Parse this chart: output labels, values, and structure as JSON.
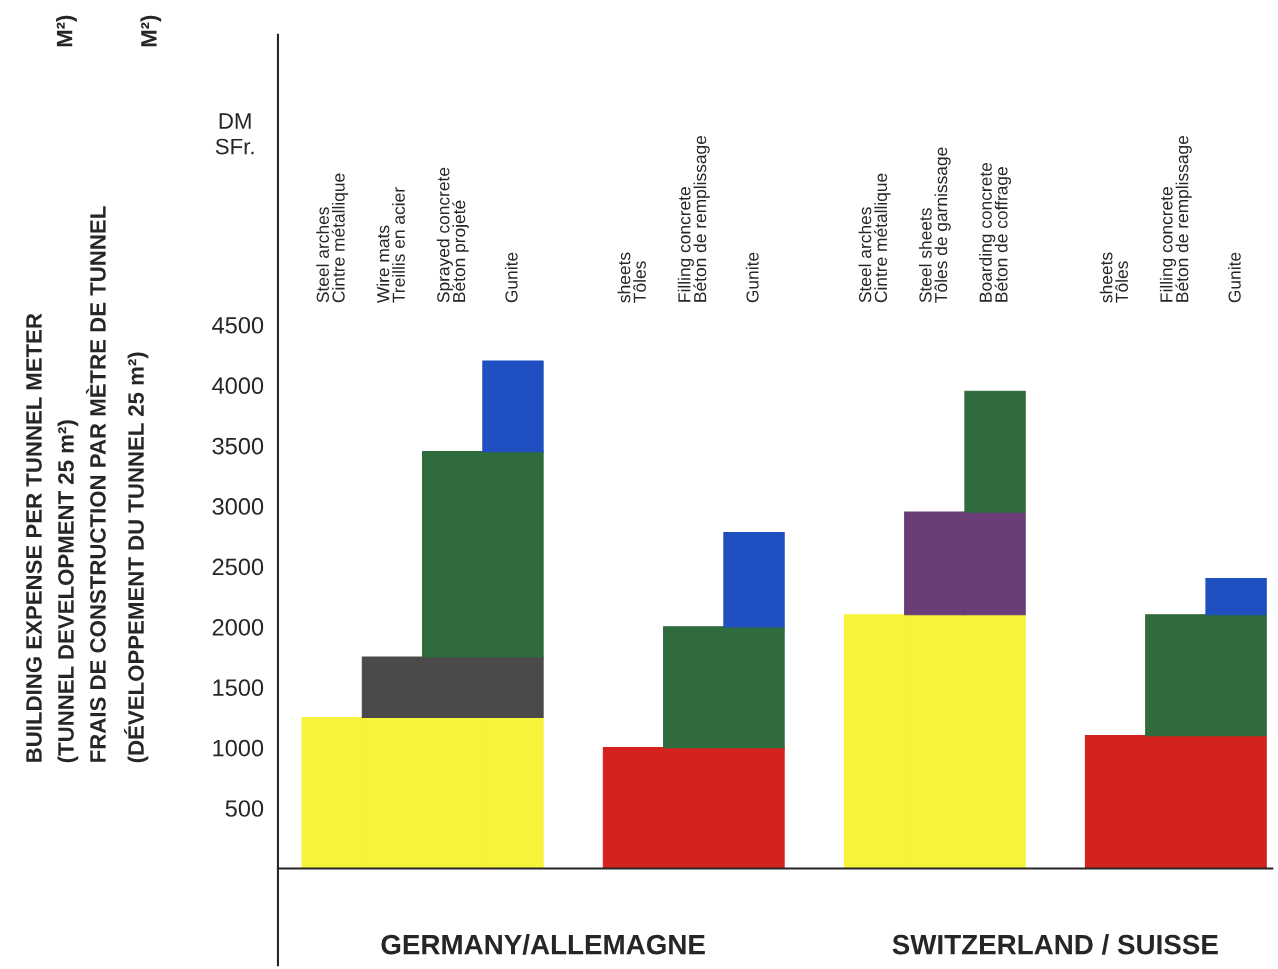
{
  "chart_data": {
    "type": "bar",
    "stacked": true,
    "ylabel": "BUILDING EXPENSE PER TUNNEL METER\n(TUNNEL DEVELOPMENT 25 m²)\nFRAIS DE CONSTRUCTION PAR MÈTRE DE TUNNEL\n(DÉVELOPPEMENT DU TUNNEL 25 m²)",
    "categories": [
      "Steel arches\nCintre métallique",
      "Wire mats\nTreillis en acier",
      "Sprayed concrete\nBéton projeté",
      "Gunite",
      null,
      "sheets\nTôles",
      "Filling concrete\nBéton de remplissage",
      "Gunite",
      null,
      "Steel arches\nCintre métallique",
      "Steel sheets\nTôles de garnissage",
      "Boarding concrete\nBéton de coffrage",
      null,
      "sheets\nTôles",
      "Filling concrete\nBéton de remplissage",
      "Gunite"
    ],
    "series": [
      {
        "values": [
          1250,
          1250,
          1250,
          1250,
          null,
          1000,
          1000,
          1000,
          null,
          2100,
          2100,
          2100,
          null,
          1100,
          1100,
          1100
        ],
        "colors": [
          "#f7f23a",
          "#f7f23a",
          "#f7f23a",
          "#f7f23a",
          null,
          "#d4221e",
          "#d4221e",
          "#d4221e",
          null,
          "#f7f23a",
          "#f7f23a",
          "#f7f23a",
          null,
          "#d4221e",
          "#d4221e",
          "#d4221e"
        ]
      },
      {
        "values": [
          null,
          500,
          500,
          500,
          null,
          null,
          1000,
          1000,
          null,
          null,
          850,
          850,
          null,
          null,
          1000,
          1000
        ],
        "colors": [
          null,
          "#4a4a4a",
          "#4a4a4a",
          "#4a4a4a",
          null,
          null,
          "#2f6b3c",
          "#2f6b3c",
          null,
          null,
          "#6a3d78",
          "#6a3d78",
          null,
          null,
          "#2f6b3c",
          "#2f6b3c"
        ]
      },
      {
        "values": [
          null,
          null,
          1700,
          1700,
          null,
          null,
          null,
          780,
          null,
          null,
          null,
          1000,
          null,
          null,
          null,
          300
        ],
        "colors": [
          null,
          null,
          "#2f6b3c",
          "#2f6b3c",
          null,
          null,
          null,
          "#1f4fc0",
          null,
          null,
          null,
          "#2f6b3c",
          null,
          null,
          null,
          "#1f4fc0"
        ]
      },
      {
        "values": [
          null,
          null,
          null,
          750,
          null,
          null,
          null,
          null,
          null,
          null,
          null,
          null,
          null,
          null,
          null,
          null
        ],
        "colors": [
          null,
          null,
          null,
          "#1f4fc0",
          null,
          null,
          null,
          null,
          null,
          null,
          null,
          null,
          null,
          null,
          null,
          null
        ]
      }
    ],
    "ylim": [
      -800,
      6900
    ],
    "yticks": [
      500,
      1000,
      1500,
      2000,
      2500,
      3000,
      3500,
      4000,
      4500
    ],
    "annotations": [
      "DM\nSFr.",
      "M²)",
      "M²)",
      "GERMANY/ALLEMAGNE",
      "SWITZERLAND / SUISSE"
    ]
  }
}
